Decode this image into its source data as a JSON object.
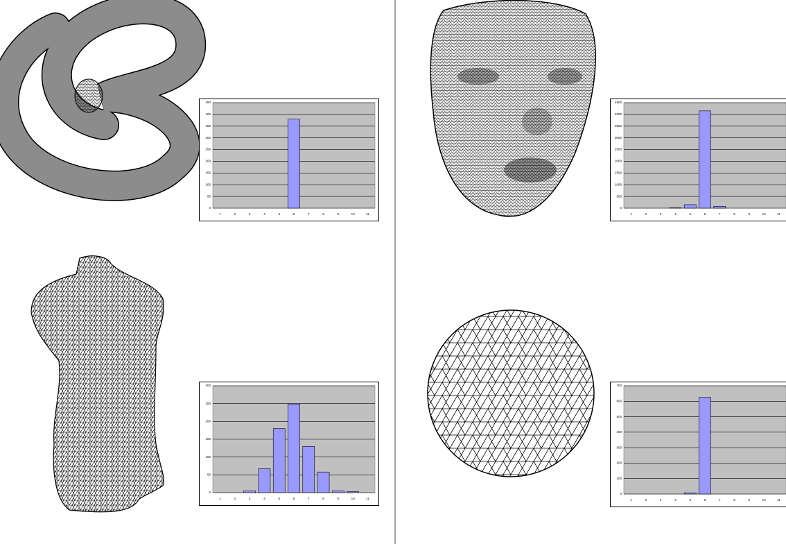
{
  "chart_data": [
    {
      "type": "bar",
      "categories": [
        "1",
        "2",
        "3",
        "4",
        "5",
        "6",
        "7",
        "8",
        "9",
        "10",
        "11"
      ],
      "values": [
        0,
        0,
        0,
        0,
        0,
        380,
        0,
        0,
        0,
        0,
        0
      ],
      "color": "#9999ff",
      "ylim": [
        0,
        450
      ],
      "yticks": [
        0,
        50,
        100,
        150,
        200,
        250,
        300,
        350,
        400,
        450
      ],
      "grid": true
    },
    {
      "type": "bar",
      "categories": [
        "1",
        "2",
        "3",
        "4",
        "5",
        "6",
        "7",
        "8",
        "9",
        "10",
        "11"
      ],
      "values": [
        0,
        0,
        0,
        15,
        150,
        4150,
        80,
        0,
        0,
        0,
        0
      ],
      "color": "#9999ff",
      "ylim": [
        0,
        4500
      ],
      "yticks": [
        0,
        500,
        1000,
        1500,
        2000,
        2500,
        3000,
        3500,
        4000,
        4500
      ],
      "grid": true
    },
    {
      "type": "bar",
      "categories": [
        "1",
        "2",
        "3",
        "4",
        "5",
        "6",
        "7",
        "8",
        "9",
        "10",
        "11"
      ],
      "values": [
        0,
        0,
        5,
        67,
        180,
        249,
        130,
        58,
        5,
        3,
        0
      ],
      "color": "#9999ff",
      "ylim": [
        0,
        300
      ],
      "yticks": [
        0,
        50,
        100,
        150,
        200,
        250,
        300
      ],
      "grid": true
    },
    {
      "type": "bar",
      "categories": [
        "1",
        "2",
        "3",
        "4",
        "5",
        "6",
        "7",
        "8",
        "9",
        "10",
        "11"
      ],
      "values": [
        0,
        0,
        0,
        0,
        8,
        625,
        0,
        0,
        0,
        0,
        0
      ],
      "color": "#9999ff",
      "ylim": [
        0,
        700
      ],
      "yticks": [
        0,
        100,
        200,
        300,
        400,
        500,
        600,
        700
      ],
      "grid": true
    }
  ]
}
